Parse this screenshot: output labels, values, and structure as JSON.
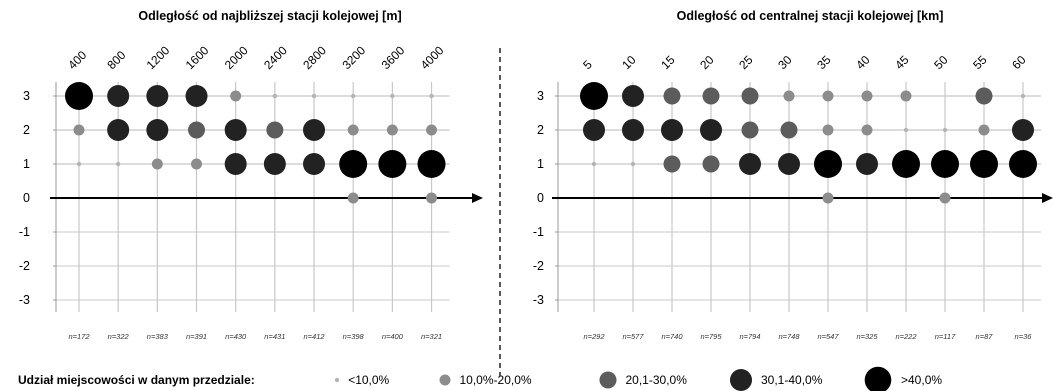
{
  "chart_data": [
    {
      "type": "scatter",
      "title": "Odległość od najbliższej stacji kolejowej [m]",
      "categories": [
        "400",
        "800",
        "1200",
        "1600",
        "2000",
        "2400",
        "2800",
        "3200",
        "3600",
        "4000"
      ],
      "y_ticks": [
        "3",
        "2",
        "1",
        "0",
        "-1",
        "-2",
        "-3"
      ],
      "ylim": [
        -3,
        3
      ],
      "n_labels": [
        "n=172",
        "n=322",
        "n=383",
        "n=391",
        "n=430",
        "n=431",
        "n=412",
        "n=398",
        "n=400",
        "n=321"
      ],
      "size_classes": {
        "3": [
          5,
          4,
          4,
          4,
          2,
          1,
          1,
          1,
          1,
          1
        ],
        "2": [
          2,
          4,
          4,
          3,
          4,
          3,
          4,
          2,
          2,
          2
        ],
        "1": [
          1,
          1,
          2,
          2,
          4,
          4,
          4,
          5,
          5,
          5
        ],
        "0": [
          0,
          0,
          0,
          0,
          0,
          0,
          0,
          2,
          0,
          2
        ],
        "-1": [
          0,
          0,
          0,
          0,
          0,
          0,
          0,
          0,
          0,
          0
        ],
        "-2": [
          0,
          0,
          0,
          0,
          0,
          0,
          0,
          0,
          0,
          0
        ],
        "-3": [
          0,
          0,
          0,
          0,
          0,
          0,
          0,
          0,
          0,
          0
        ]
      }
    },
    {
      "type": "scatter",
      "title": "Odległość od centralnej stacji kolejowej [km]",
      "categories": [
        "5",
        "10",
        "15",
        "20",
        "25",
        "30",
        "35",
        "40",
        "45",
        "50",
        "55",
        "60"
      ],
      "y_ticks": [
        "3",
        "2",
        "1",
        "0",
        "-1",
        "-2",
        "-3"
      ],
      "ylim": [
        -3,
        3
      ],
      "n_labels": [
        "n=292",
        "n=577",
        "n=740",
        "n=795",
        "n=794",
        "n=748",
        "n=547",
        "n=325",
        "n=222",
        "n=117",
        "n=87",
        "n=36"
      ],
      "size_classes": {
        "3": [
          5,
          4,
          3,
          3,
          3,
          2,
          2,
          2,
          2,
          0,
          3,
          1
        ],
        "2": [
          4,
          4,
          4,
          4,
          3,
          3,
          2,
          2,
          1,
          1,
          2,
          4
        ],
        "1": [
          1,
          1,
          3,
          3,
          4,
          4,
          5,
          4,
          5,
          5,
          5,
          5
        ],
        "0": [
          0,
          0,
          0,
          0,
          0,
          0,
          2,
          0,
          0,
          2,
          0,
          0
        ],
        "-1": [
          0,
          0,
          0,
          0,
          0,
          0,
          0,
          0,
          0,
          0,
          0,
          0
        ],
        "-2": [
          0,
          0,
          0,
          0,
          0,
          0,
          0,
          0,
          0,
          0,
          0,
          0
        ],
        "-3": [
          0,
          0,
          0,
          0,
          0,
          0,
          0,
          0,
          0,
          0,
          0,
          0
        ]
      }
    }
  ],
  "legend": {
    "title": "Udział miejscowości w danym przedziale:",
    "items": [
      "<10,0%",
      "10,0%-20,0%",
      "20,1-30,0%",
      "30,1-40,0%",
      ">40,0%"
    ]
  },
  "colors": {
    "class1": "#b4b4b4",
    "class2": "#8c8c8c",
    "class3": "#5c5c5c",
    "class4": "#222222",
    "class5": "#000000",
    "grid": "#c8c8c8",
    "axis": "#000000"
  }
}
